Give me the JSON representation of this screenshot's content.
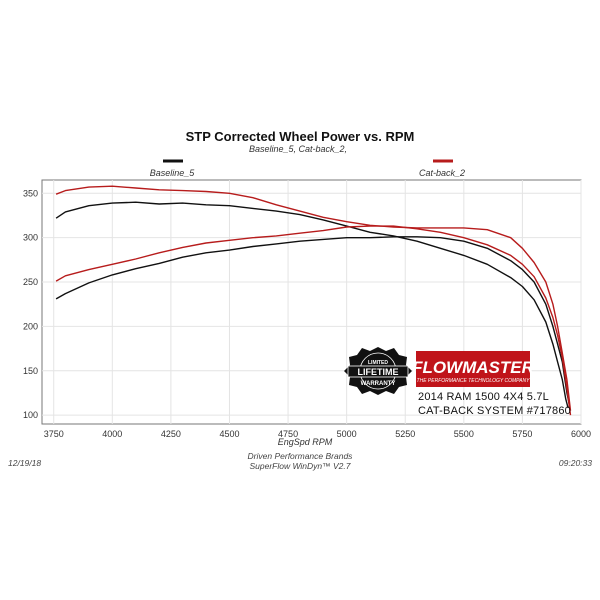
{
  "chart_data": {
    "type": "line",
    "title": "STP Corrected Wheel Power vs. RPM",
    "subtitle": "Baseline_5, Cat-back_2,",
    "xlabel": "EngSpd  RPM",
    "ylabel": "",
    "xlim": [
      3700,
      6000
    ],
    "ylim": [
      90,
      365
    ],
    "x_ticks": [
      3750,
      4000,
      4250,
      4500,
      4750,
      5000,
      5250,
      5500,
      5750,
      6000
    ],
    "y_ticks": [
      100,
      150,
      200,
      250,
      300,
      350
    ],
    "grid": true,
    "legend_position": "top",
    "series": [
      {
        "name": "Baseline_5",
        "metric": "power",
        "color": "#111111",
        "points": [
          [
            3760,
            322
          ],
          [
            3800,
            329
          ],
          [
            3900,
            336
          ],
          [
            4000,
            339
          ],
          [
            4100,
            340
          ],
          [
            4200,
            338
          ],
          [
            4300,
            339
          ],
          [
            4400,
            337
          ],
          [
            4500,
            336
          ],
          [
            4600,
            333
          ],
          [
            4700,
            330
          ],
          [
            4800,
            326
          ],
          [
            4900,
            320
          ],
          [
            5000,
            313
          ],
          [
            5100,
            306
          ],
          [
            5200,
            302
          ],
          [
            5300,
            296
          ],
          [
            5400,
            288
          ],
          [
            5500,
            280
          ],
          [
            5600,
            270
          ],
          [
            5700,
            255
          ],
          [
            5750,
            245
          ],
          [
            5800,
            230
          ],
          [
            5850,
            205
          ],
          [
            5880,
            180
          ],
          [
            5900,
            160
          ],
          [
            5920,
            140
          ],
          [
            5935,
            118
          ],
          [
            5945,
            108
          ]
        ]
      },
      {
        "name": "Baseline_5",
        "metric": "torque",
        "color": "#111111",
        "points": [
          [
            3760,
            231
          ],
          [
            3800,
            237
          ],
          [
            3900,
            249
          ],
          [
            4000,
            258
          ],
          [
            4100,
            265
          ],
          [
            4200,
            271
          ],
          [
            4300,
            278
          ],
          [
            4400,
            283
          ],
          [
            4500,
            286
          ],
          [
            4600,
            290
          ],
          [
            4700,
            293
          ],
          [
            4800,
            296
          ],
          [
            4900,
            298
          ],
          [
            5000,
            300
          ],
          [
            5100,
            300
          ],
          [
            5200,
            301
          ],
          [
            5300,
            301
          ],
          [
            5400,
            300
          ],
          [
            5500,
            296
          ],
          [
            5600,
            288
          ],
          [
            5700,
            274
          ],
          [
            5750,
            264
          ],
          [
            5800,
            250
          ],
          [
            5850,
            225
          ],
          [
            5880,
            200
          ],
          [
            5900,
            180
          ],
          [
            5920,
            160
          ],
          [
            5940,
            125
          ],
          [
            5950,
            112
          ]
        ]
      },
      {
        "name": "Cat-back_2",
        "metric": "power",
        "color": "#b71c1c",
        "points": [
          [
            3760,
            349
          ],
          [
            3800,
            353
          ],
          [
            3900,
            357
          ],
          [
            4000,
            358
          ],
          [
            4100,
            356
          ],
          [
            4200,
            354
          ],
          [
            4300,
            353
          ],
          [
            4400,
            352
          ],
          [
            4500,
            350
          ],
          [
            4600,
            345
          ],
          [
            4700,
            337
          ],
          [
            4800,
            330
          ],
          [
            4900,
            323
          ],
          [
            5000,
            318
          ],
          [
            5100,
            314
          ],
          [
            5200,
            312
          ],
          [
            5300,
            311
          ],
          [
            5400,
            311
          ],
          [
            5500,
            311
          ],
          [
            5600,
            309
          ],
          [
            5700,
            300
          ],
          [
            5750,
            288
          ],
          [
            5800,
            272
          ],
          [
            5850,
            250
          ],
          [
            5880,
            225
          ],
          [
            5900,
            200
          ],
          [
            5920,
            170
          ],
          [
            5940,
            140
          ],
          [
            5955,
            105
          ]
        ]
      },
      {
        "name": "Cat-back_2",
        "metric": "torque",
        "color": "#b71c1c",
        "points": [
          [
            3760,
            251
          ],
          [
            3800,
            257
          ],
          [
            3900,
            264
          ],
          [
            4000,
            270
          ],
          [
            4100,
            276
          ],
          [
            4200,
            283
          ],
          [
            4300,
            289
          ],
          [
            4400,
            294
          ],
          [
            4500,
            297
          ],
          [
            4600,
            300
          ],
          [
            4700,
            302
          ],
          [
            4800,
            305
          ],
          [
            4900,
            308
          ],
          [
            5000,
            312
          ],
          [
            5100,
            313
          ],
          [
            5200,
            313
          ],
          [
            5300,
            310
          ],
          [
            5400,
            306
          ],
          [
            5500,
            300
          ],
          [
            5600,
            292
          ],
          [
            5700,
            280
          ],
          [
            5750,
            270
          ],
          [
            5800,
            256
          ],
          [
            5850,
            232
          ],
          [
            5880,
            210
          ],
          [
            5900,
            190
          ],
          [
            5920,
            165
          ],
          [
            5940,
            130
          ],
          [
            5955,
            100
          ]
        ]
      }
    ]
  },
  "legend": [
    {
      "label": "Baseline_5",
      "color": "#111111"
    },
    {
      "label": "Cat-back_2",
      "color": "#b71c1c"
    }
  ],
  "footer": {
    "date": "12/19/18",
    "company": "Driven Performance Brands",
    "software": "SuperFlow WinDyn™ V2.7",
    "time": "09:20:33"
  },
  "branding": {
    "brand": "FLOWMASTER",
    "tagline": "THE PERFORMANCE TECHNOLOGY COMPANY",
    "badge": [
      "LIMITED",
      "LIFETIME",
      "WARRANTY"
    ],
    "vehicle": "2014 RAM 1500 4X4 5.7L",
    "system": "CAT-BACK SYSTEM #717860"
  }
}
